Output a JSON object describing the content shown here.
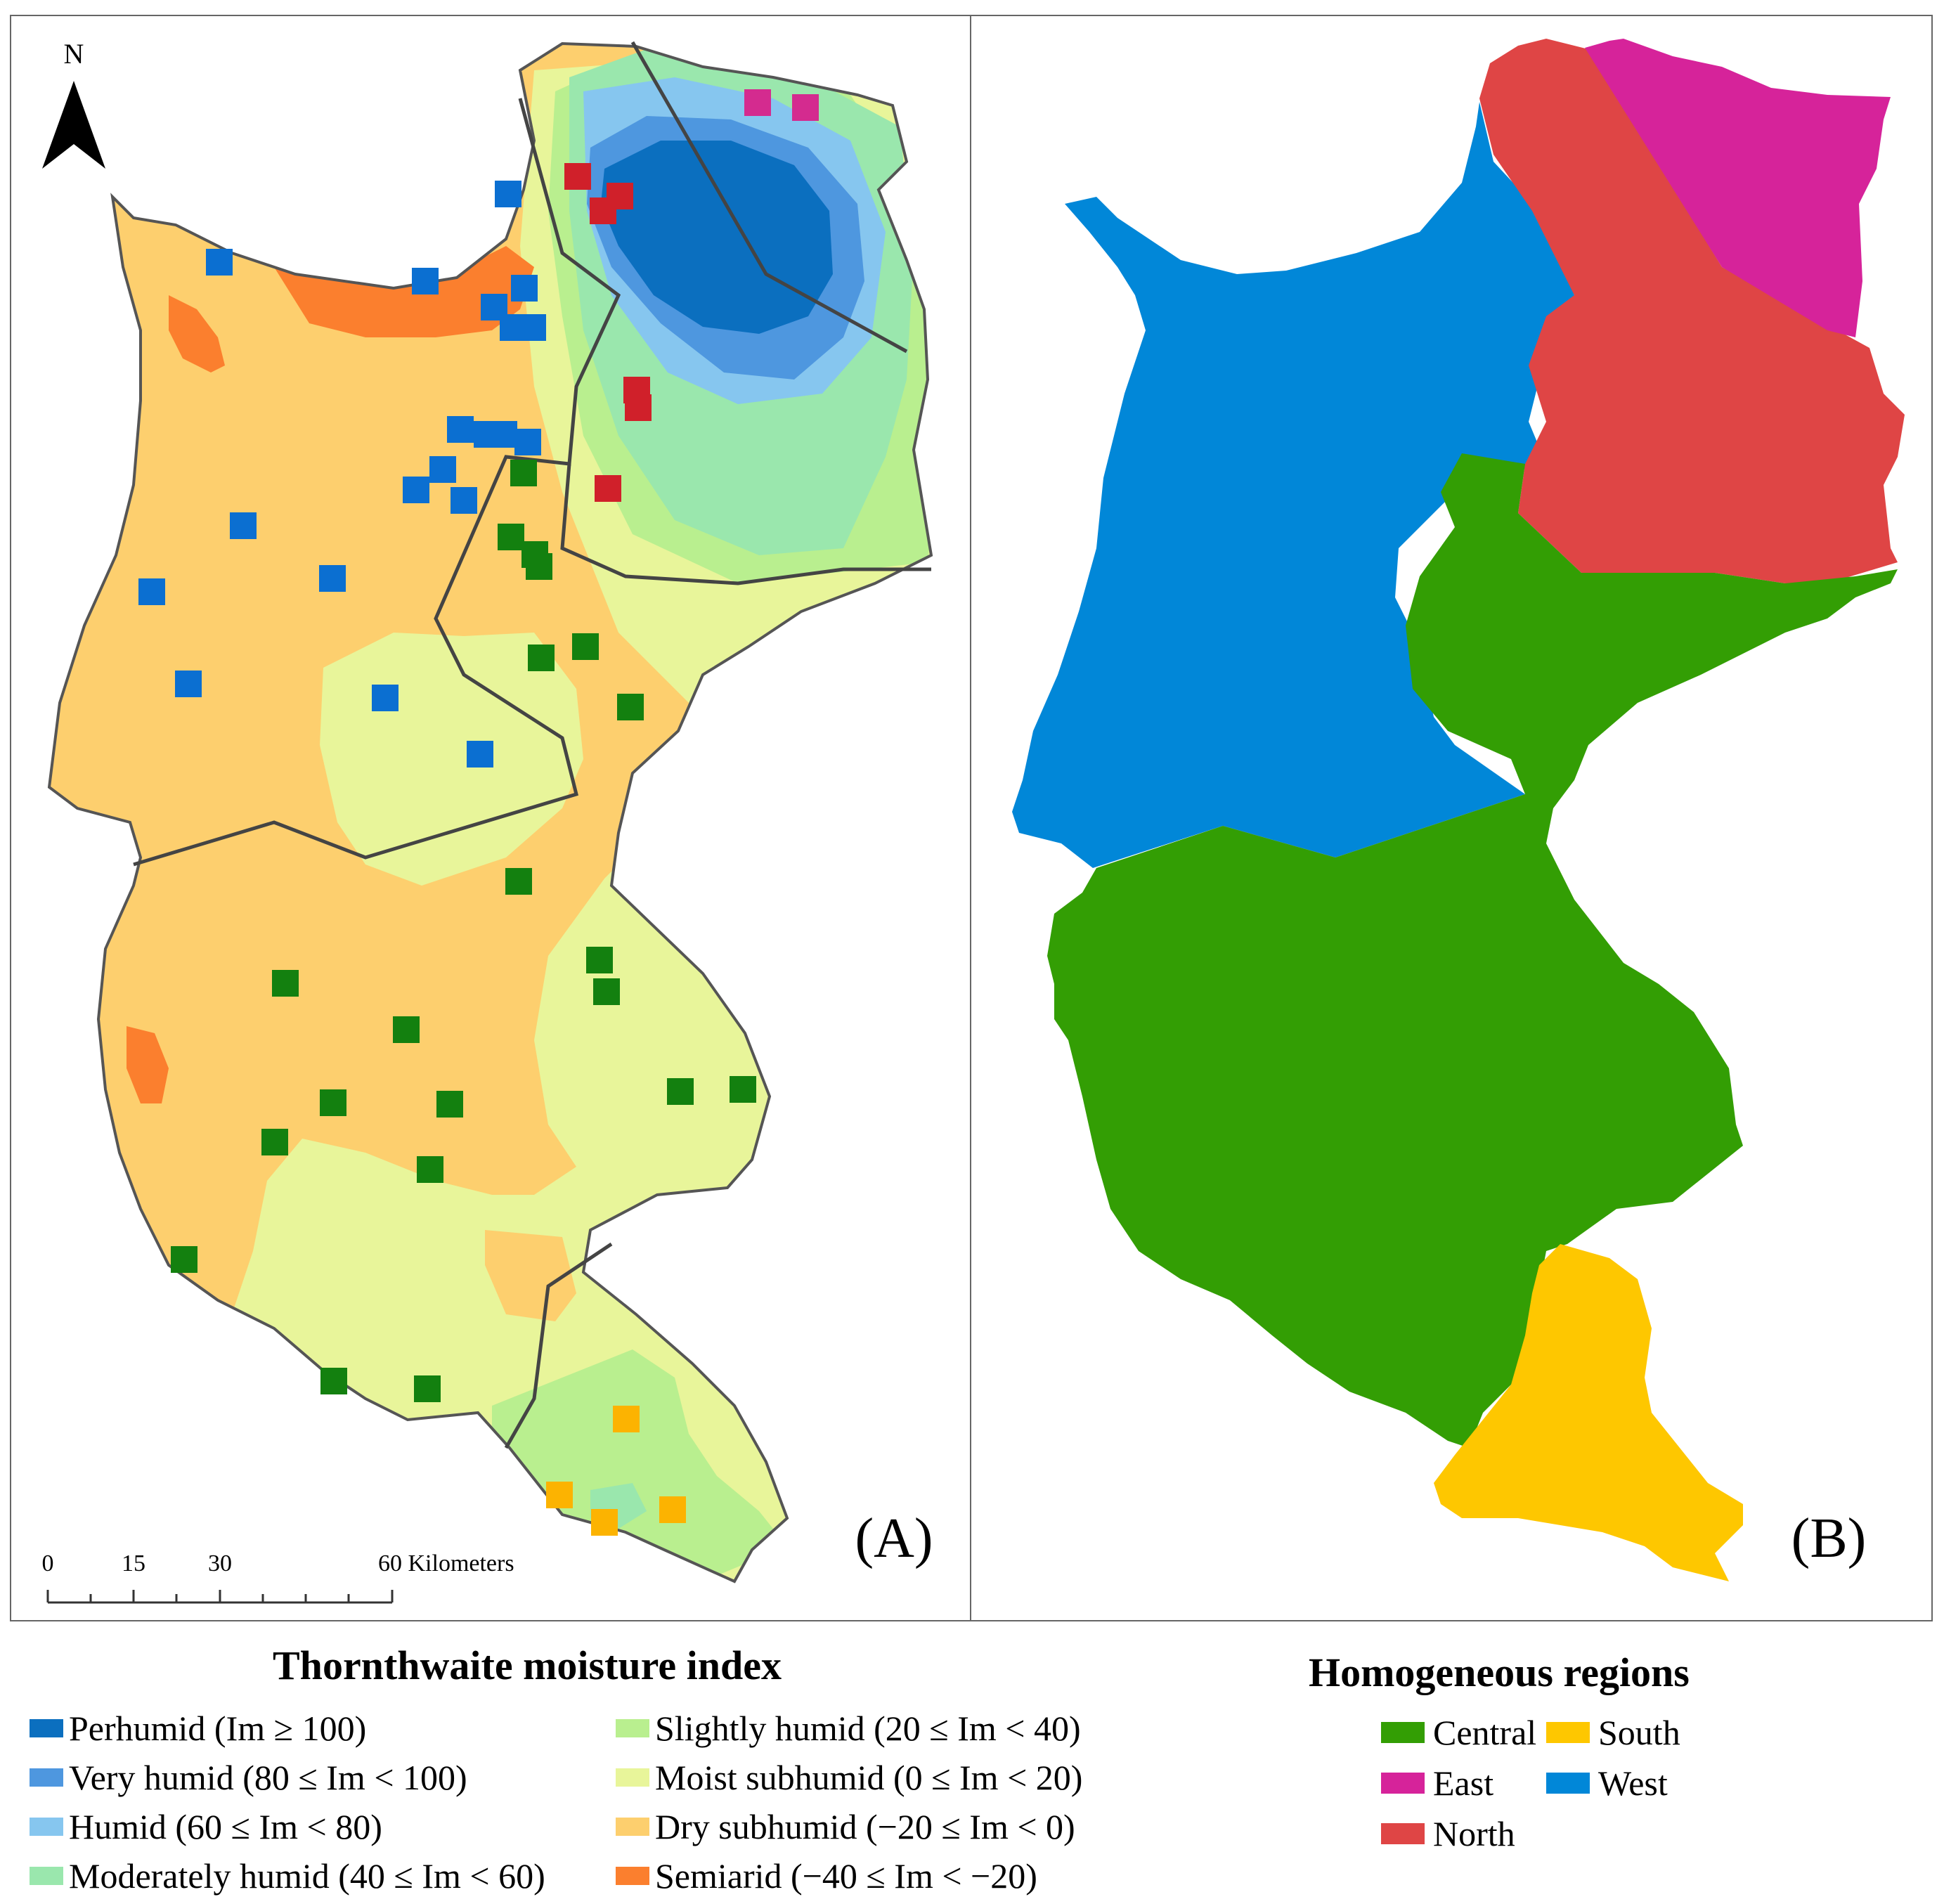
{
  "panel_a": {
    "label": "(A)",
    "north_label": "N",
    "scale": {
      "ticks": [
        "0",
        "15",
        "30",
        "60 Kilometers"
      ]
    }
  },
  "panel_b": {
    "label": "(B)"
  },
  "legend_moisture": {
    "title": "Thornthwaite moisture index",
    "items": [
      {
        "label": "Perhumid (Im ≥ 100)",
        "color": "#0b6fbf"
      },
      {
        "label": "Very humid (80 ≤ Im < 100)",
        "color": "#4e97df"
      },
      {
        "label": "Humid (60 ≤ Im < 80)",
        "color": "#86c6ef"
      },
      {
        "label": "Moderately humid (40 ≤ Im < 60)",
        "color": "#9ae7ad"
      },
      {
        "label": "Slightly humid (20 ≤ Im < 40)",
        "color": "#b9ef8f"
      },
      {
        "label": "Moist subhumid (0 ≤ Im < 20)",
        "color": "#e8f59a"
      },
      {
        "label": "Dry subhumid (−20 ≤ Im < 0)",
        "color": "#fdcf6e"
      },
      {
        "label": "Semiarid (−40 ≤ Im < −20)",
        "color": "#fb7f2e"
      }
    ]
  },
  "legend_regions": {
    "title": "Homogeneous regions",
    "items": [
      {
        "label": "Central",
        "color": "#339e04"
      },
      {
        "label": "South",
        "color": "#fec700"
      },
      {
        "label": "East",
        "color": "#d6239a"
      },
      {
        "label": "West",
        "color": "#0187d8"
      },
      {
        "label": "North",
        "color": "#df4545"
      }
    ]
  },
  "stations": {
    "west_color": "#0b6fd1",
    "north_color": "#d0202a",
    "east_color": "#d42b8f",
    "central_color": "#13800f",
    "south_color": "#fcb301"
  }
}
